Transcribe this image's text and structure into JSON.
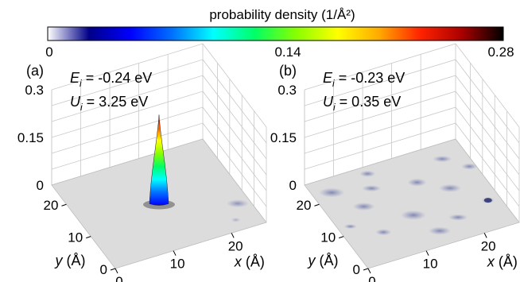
{
  "colorbar": {
    "label": "probability density (1/Å²)",
    "ticks": [
      "0",
      "0.14",
      "0.28"
    ],
    "stops": [
      "#ffffff",
      "#000088",
      "#0000ff",
      "#0070ff",
      "#00ffff",
      "#00ff66",
      "#88ff00",
      "#ffff00",
      "#ffaa00",
      "#ff2200",
      "#aa0000",
      "#000000"
    ]
  },
  "chart_data": [
    {
      "type": "surface",
      "panel": "(a)",
      "annotations": [
        "E_i = -0.24 eV",
        "U_i = 3.25 eV"
      ],
      "xlabel": "x (Å)",
      "ylabel": "y (Å)",
      "x_ticks": [
        "0",
        "10",
        "20"
      ],
      "y_ticks": [
        "0",
        "10",
        "20"
      ],
      "z_ticks": [
        "0",
        "0.15",
        "0.3"
      ],
      "zlim": [
        0,
        0.3
      ],
      "peak": {
        "x": 13,
        "y": 13,
        "value": 0.28
      }
    },
    {
      "type": "surface",
      "panel": "(b)",
      "annotations": [
        "E_i = -0.23 eV",
        "U_i = 0.35 eV"
      ],
      "xlabel": "x (Å)",
      "ylabel": "y (Å)",
      "x_ticks": [
        "0",
        "10",
        "20"
      ],
      "y_ticks": [
        "0",
        "10",
        "20"
      ],
      "z_ticks": [
        "0",
        "0.15",
        "0.3"
      ],
      "zlim": [
        0,
        0.3
      ],
      "max_value": 0.02
    }
  ]
}
